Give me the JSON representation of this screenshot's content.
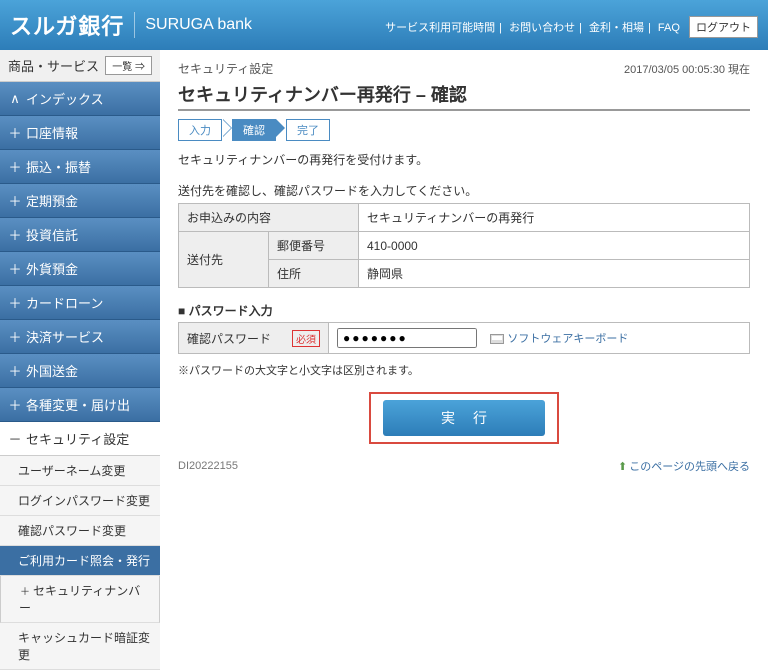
{
  "header": {
    "logo_jp": "スルガ銀行",
    "logo_en": "SURUGA bank",
    "links": [
      "サービス利用可能時間",
      "お問い合わせ",
      "金利・相場",
      "FAQ"
    ],
    "logout": "ログアウト"
  },
  "sidebar": {
    "title": "商品・サービス",
    "list_btn": "一覧 ⇒",
    "items": [
      {
        "prefix": "∧",
        "label": "インデックス"
      },
      {
        "prefix": "＋",
        "label": "口座情報"
      },
      {
        "prefix": "＋",
        "label": "振込・振替"
      },
      {
        "prefix": "＋",
        "label": "定期預金"
      },
      {
        "prefix": "＋",
        "label": "投資信託"
      },
      {
        "prefix": "＋",
        "label": "外貨預金"
      },
      {
        "prefix": "＋",
        "label": "カードローン"
      },
      {
        "prefix": "＋",
        "label": "決済サービス"
      },
      {
        "prefix": "＋",
        "label": "外国送金"
      },
      {
        "prefix": "＋",
        "label": "各種変更・届け出"
      },
      {
        "prefix": "－",
        "label": "セキュリティ設定"
      }
    ],
    "subs": [
      {
        "label": "ユーザーネーム変更"
      },
      {
        "label": "ログインパスワード変更"
      },
      {
        "label": "確認パスワード変更"
      },
      {
        "label": "ご利用カード照会・発行",
        "active": true
      },
      {
        "label": "セキュリティナンバー",
        "prefix": "＋",
        "boxed": true
      },
      {
        "label": "キャッシュカード暗証変更"
      }
    ]
  },
  "main": {
    "breadcrumb": "セキュリティ設定",
    "timestamp": "2017/03/05  00:05:30 現在",
    "title": "セキュリティナンバー再発行 – 確認",
    "steps": [
      "入力",
      "確認",
      "完了"
    ],
    "active_step": 1,
    "msg1": "セキュリティナンバーの再発行を受付けます。",
    "msg2": "送付先を確認し、確認パスワードを入力してください。",
    "table": {
      "r1_h": "お申込みの内容",
      "r1_v": "セキュリティナンバーの再発行",
      "r2_h": "送付先",
      "r2a_h": "郵便番号",
      "r2a_v": "410-0000",
      "r2b_h": "住所",
      "r2b_v": "静岡県"
    },
    "pw_section": "■ パスワード入力",
    "pw_label": "確認パスワード",
    "pw_req": "必須",
    "pw_value": "●●●●●●●",
    "kb_link": "ソフトウェアキーボード",
    "note": "※パスワードの大文字と小文字は区別されます。",
    "exec": "実行",
    "ref": "DI20222155",
    "back_top": "このページの先頭へ戻る"
  }
}
